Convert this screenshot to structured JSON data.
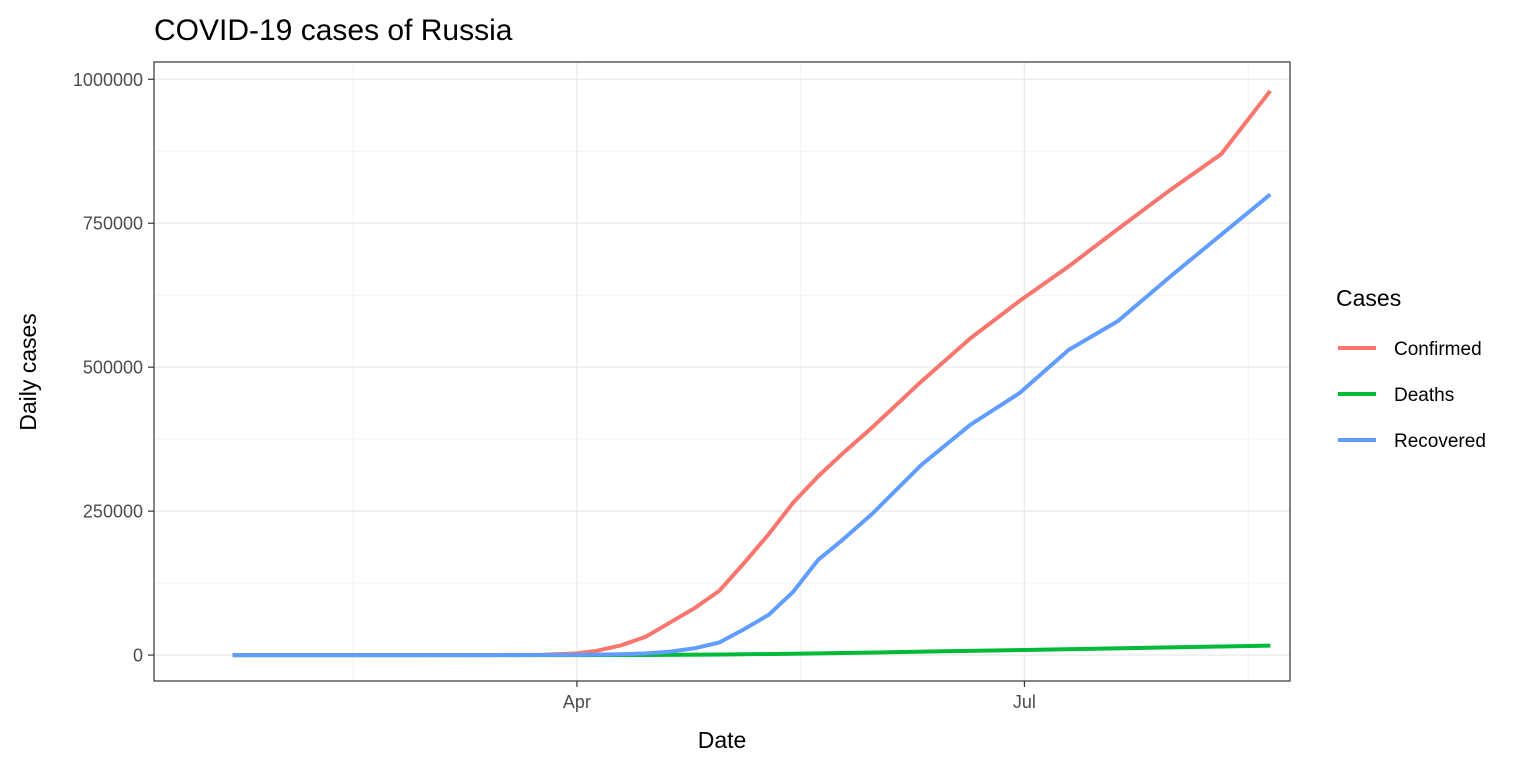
{
  "chart_data": {
    "type": "line",
    "title": "COVID-19 cases of Russia",
    "xlabel": "Date",
    "ylabel": "Daily cases",
    "x_ticks": [
      "Apr",
      "Jul"
    ],
    "x_tick_dates": [
      "2020-04-01",
      "2020-07-01"
    ],
    "x_range": [
      "2020-01-06",
      "2020-08-24"
    ],
    "ylim": [
      -45000,
      1030000
    ],
    "y_ticks": [
      0,
      250000,
      500000,
      750000,
      1000000
    ],
    "y_tick_labels": [
      "0",
      "250000",
      "500000",
      "750000",
      "1000000"
    ],
    "grid": true,
    "legend_title": "Cases",
    "legend_position": "right",
    "series": [
      {
        "name": "Confirmed",
        "color": "#F8766D",
        "x": [
          "2020-01-22",
          "2020-02-15",
          "2020-03-01",
          "2020-03-15",
          "2020-03-25",
          "2020-04-01",
          "2020-04-05",
          "2020-04-10",
          "2020-04-15",
          "2020-04-20",
          "2020-04-25",
          "2020-04-30",
          "2020-05-05",
          "2020-05-10",
          "2020-05-15",
          "2020-05-20",
          "2020-05-25",
          "2020-05-31",
          "2020-06-10",
          "2020-06-20",
          "2020-06-30",
          "2020-07-10",
          "2020-07-20",
          "2020-07-31",
          "2020-08-10",
          "2020-08-20"
        ],
        "values": [
          0,
          0,
          0,
          100,
          700,
          3000,
          7500,
          17000,
          32000,
          57000,
          82000,
          112000,
          160000,
          210000,
          265000,
          310000,
          350000,
          395000,
          475000,
          550000,
          615000,
          675000,
          740000,
          810000,
          870000,
          980000
        ]
      },
      {
        "name": "Deaths",
        "color": "#00BA38",
        "x": [
          "2020-01-22",
          "2020-03-15",
          "2020-04-01",
          "2020-04-15",
          "2020-05-01",
          "2020-05-15",
          "2020-06-01",
          "2020-06-15",
          "2020-07-01",
          "2020-07-15",
          "2020-08-01",
          "2020-08-20"
        ],
        "values": [
          0,
          0,
          50,
          200,
          1100,
          2400,
          4500,
          6700,
          8900,
          11000,
          13500,
          16500
        ]
      },
      {
        "name": "Recovered",
        "color": "#619CFF",
        "x": [
          "2020-01-22",
          "2020-03-15",
          "2020-04-01",
          "2020-04-10",
          "2020-04-15",
          "2020-04-20",
          "2020-04-25",
          "2020-04-30",
          "2020-05-05",
          "2020-05-10",
          "2020-05-15",
          "2020-05-20",
          "2020-05-25",
          "2020-05-31",
          "2020-06-10",
          "2020-06-20",
          "2020-06-30",
          "2020-07-10",
          "2020-07-20",
          "2020-07-31",
          "2020-08-10",
          "2020-08-20"
        ],
        "values": [
          0,
          0,
          300,
          1500,
          3000,
          6000,
          12000,
          22000,
          45000,
          70000,
          110000,
          165000,
          200000,
          245000,
          330000,
          400000,
          455000,
          530000,
          580000,
          660000,
          730000,
          800000
        ]
      }
    ]
  }
}
